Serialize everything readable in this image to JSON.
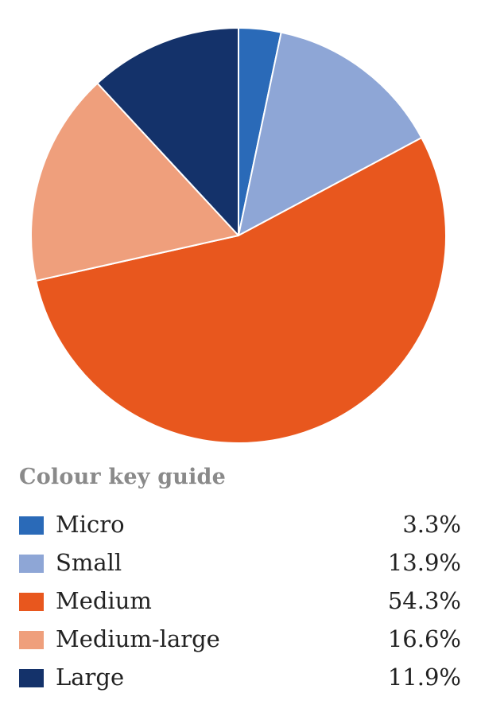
{
  "chart_data": {
    "type": "pie",
    "title": "",
    "categories": [
      "Micro",
      "Small",
      "Medium",
      "Medium-large",
      "Large"
    ],
    "values": [
      3.3,
      13.9,
      54.3,
      16.6,
      11.9
    ],
    "unit": "%",
    "colors": [
      "#2a6ab8",
      "#8ea6d6",
      "#e8571e",
      "#ef9f7c",
      "#14326a"
    ],
    "start": "12 o'clock",
    "direction": "clockwise"
  },
  "legend": {
    "title": "Colour key guide",
    "items": [
      {
        "label": "Micro",
        "value": "3.3%",
        "color": "#2a6ab8"
      },
      {
        "label": "Small",
        "value": "13.9%",
        "color": "#8ea6d6"
      },
      {
        "label": "Medium",
        "value": "54.3%",
        "color": "#e8571e"
      },
      {
        "label": "Medium-large",
        "value": "16.6%",
        "color": "#ef9f7c"
      },
      {
        "label": "Large",
        "value": "11.9%",
        "color": "#14326a"
      }
    ]
  }
}
